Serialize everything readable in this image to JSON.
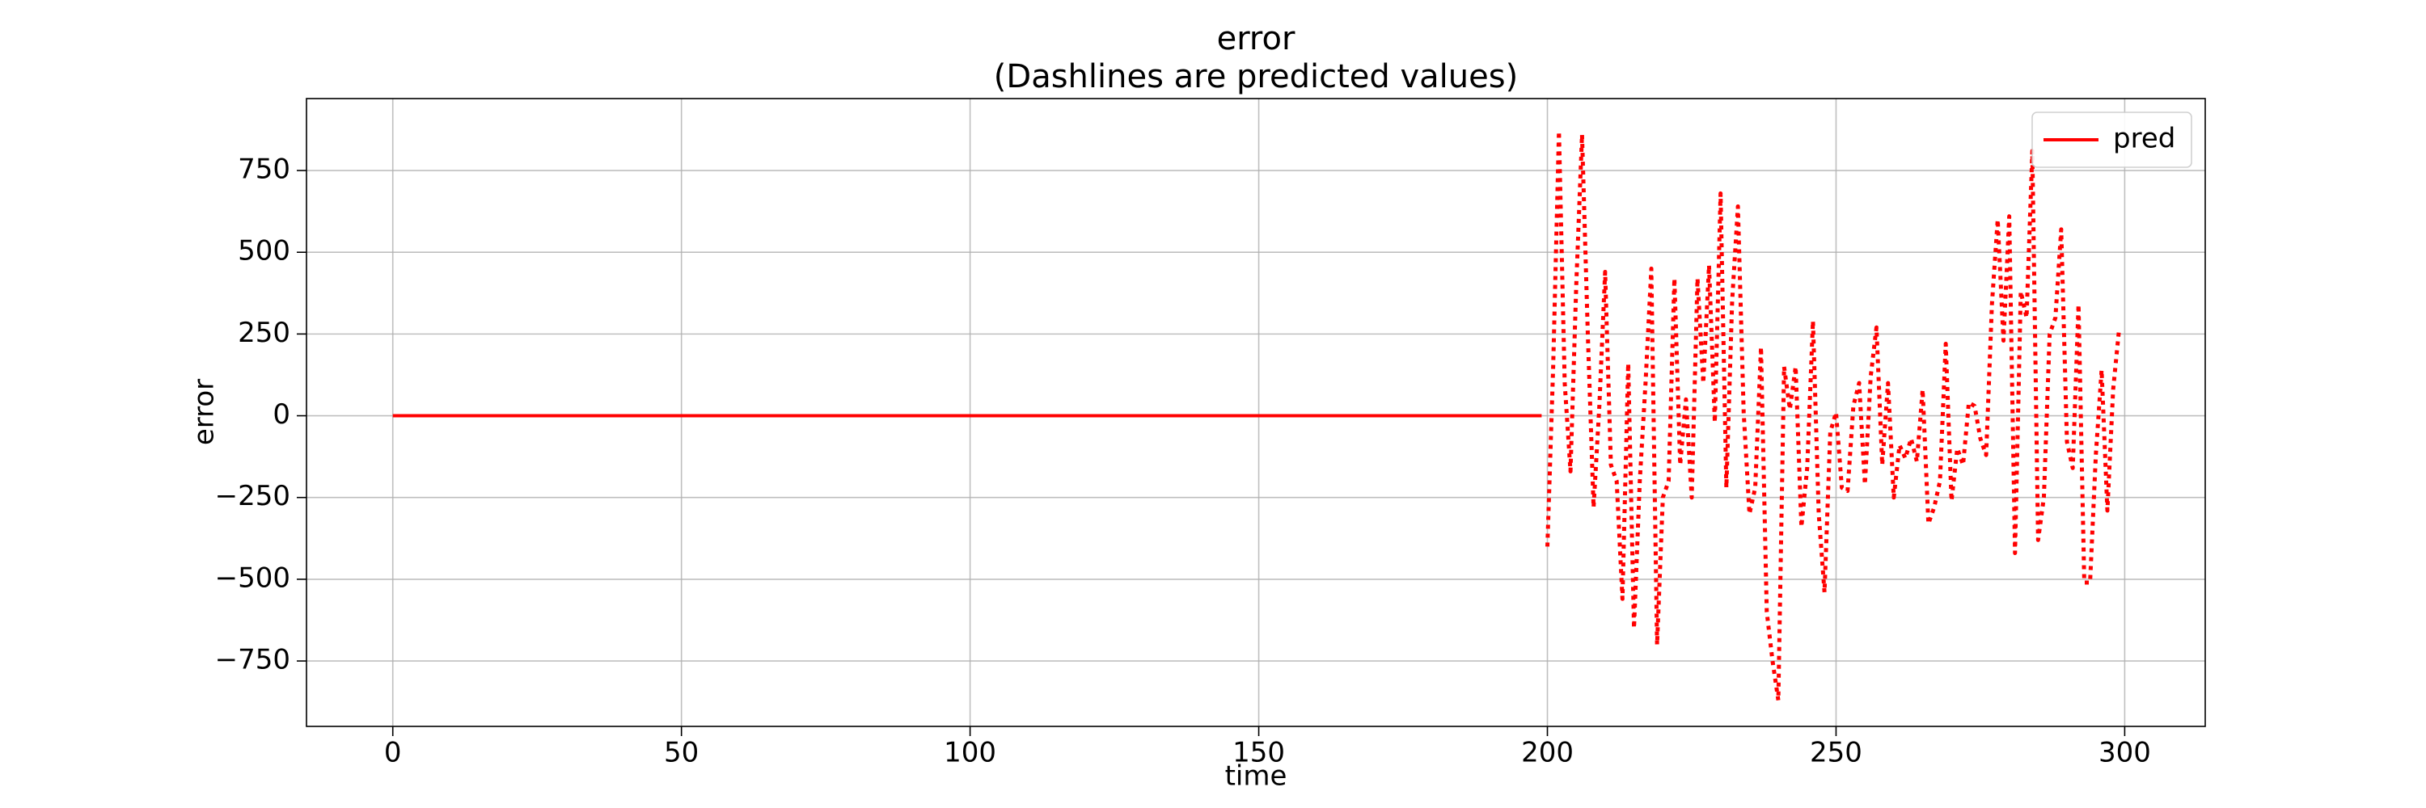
{
  "chart_data": {
    "type": "line",
    "title": "error",
    "subtitle": "(Dashlines are predicted values)",
    "xlabel": "time",
    "ylabel": "error",
    "xlim": [
      -14.95,
      313.95
    ],
    "ylim": [
      -950,
      970
    ],
    "xticks": [
      0,
      50,
      100,
      150,
      200,
      250,
      300
    ],
    "yticks": [
      {
        "value": -750,
        "label": "−750"
      },
      {
        "value": -500,
        "label": "−500"
      },
      {
        "value": -250,
        "label": "−250"
      },
      0,
      250,
      500,
      750
    ],
    "grid": true,
    "legend": "upper right",
    "series": [
      {
        "name": "pred",
        "color": "#ff0000",
        "style": "solid",
        "x": [
          0,
          1,
          2,
          3,
          4,
          5,
          6,
          7,
          8,
          9,
          10,
          11,
          12,
          13,
          14,
          15,
          16,
          17,
          18,
          19,
          20,
          21,
          22,
          23,
          24,
          25,
          26,
          27,
          28,
          29,
          30,
          31,
          32,
          33,
          34,
          35,
          36,
          37,
          38,
          39,
          40,
          41,
          42,
          43,
          44,
          45,
          46,
          47,
          48,
          49,
          50,
          51,
          52,
          53,
          54,
          55,
          56,
          57,
          58,
          59,
          60,
          61,
          62,
          63,
          64,
          65,
          66,
          67,
          68,
          69,
          70,
          71,
          72,
          73,
          74,
          75,
          76,
          77,
          78,
          79,
          80,
          81,
          82,
          83,
          84,
          85,
          86,
          87,
          88,
          89,
          90,
          91,
          92,
          93,
          94,
          95,
          96,
          97,
          98,
          99,
          100,
          101,
          102,
          103,
          104,
          105,
          106,
          107,
          108,
          109,
          110,
          111,
          112,
          113,
          114,
          115,
          116,
          117,
          118,
          119,
          120,
          121,
          122,
          123,
          124,
          125,
          126,
          127,
          128,
          129,
          130,
          131,
          132,
          133,
          134,
          135,
          136,
          137,
          138,
          139,
          140,
          141,
          142,
          143,
          144,
          145,
          146,
          147,
          148,
          149,
          150,
          151,
          152,
          153,
          154,
          155,
          156,
          157,
          158,
          159,
          160,
          161,
          162,
          163,
          164,
          165,
          166,
          167,
          168,
          169,
          170,
          171,
          172,
          173,
          174,
          175,
          176,
          177,
          178,
          179,
          180,
          181,
          182,
          183,
          184,
          185,
          186,
          187,
          188,
          189,
          190,
          191,
          192,
          193,
          194,
          195,
          196,
          197,
          198,
          199
        ],
        "values": [
          0,
          0,
          0,
          0,
          0,
          0,
          0,
          0,
          0,
          0,
          0,
          0,
          0,
          0,
          0,
          0,
          0,
          0,
          0,
          0,
          0,
          0,
          0,
          0,
          0,
          0,
          0,
          0,
          0,
          0,
          0,
          0,
          0,
          0,
          0,
          0,
          0,
          0,
          0,
          0,
          0,
          0,
          0,
          0,
          0,
          0,
          0,
          0,
          0,
          0,
          0,
          0,
          0,
          0,
          0,
          0,
          0,
          0,
          0,
          0,
          0,
          0,
          0,
          0,
          0,
          0,
          0,
          0,
          0,
          0,
          0,
          0,
          0,
          0,
          0,
          0,
          0,
          0,
          0,
          0,
          0,
          0,
          0,
          0,
          0,
          0,
          0,
          0,
          0,
          0,
          0,
          0,
          0,
          0,
          0,
          0,
          0,
          0,
          0,
          0,
          0,
          0,
          0,
          0,
          0,
          0,
          0,
          0,
          0,
          0,
          0,
          0,
          0,
          0,
          0,
          0,
          0,
          0,
          0,
          0,
          0,
          0,
          0,
          0,
          0,
          0,
          0,
          0,
          0,
          0,
          0,
          0,
          0,
          0,
          0,
          0,
          0,
          0,
          0,
          0,
          0,
          0,
          0,
          0,
          0,
          0,
          0,
          0,
          0,
          0,
          0,
          0,
          0,
          0,
          0,
          0,
          0,
          0,
          0,
          0,
          0,
          0,
          0,
          0,
          0,
          0,
          0,
          0,
          0,
          0,
          0,
          0,
          0,
          0,
          0,
          0,
          0,
          0,
          0,
          0,
          0,
          0,
          0,
          0,
          0,
          0,
          0,
          0,
          0,
          0,
          0,
          0,
          0,
          0,
          0,
          0,
          0,
          0,
          0,
          0
        ]
      },
      {
        "color": "#ff0000",
        "style": "dotted",
        "x": [
          200,
          201,
          202,
          203,
          204,
          205,
          206,
          207,
          208,
          209,
          210,
          211,
          212,
          213,
          214,
          215,
          216,
          217,
          218,
          219,
          220,
          221,
          222,
          223,
          224,
          225,
          226,
          227,
          228,
          229,
          230,
          231,
          232,
          233,
          234,
          235,
          236,
          237,
          238,
          239,
          240,
          241,
          242,
          243,
          244,
          245,
          246,
          247,
          248,
          249,
          250,
          251,
          252,
          253,
          254,
          255,
          256,
          257,
          258,
          259,
          260,
          261,
          262,
          263,
          264,
          265,
          266,
          267,
          268,
          269,
          270,
          271,
          272,
          273,
          274,
          275,
          276,
          277,
          278,
          279,
          280,
          281,
          282,
          283,
          284,
          285,
          286,
          287,
          288,
          289,
          290,
          291,
          292,
          293,
          294,
          295,
          296,
          297,
          298,
          299
        ],
        "values": [
          -400,
          150,
          870,
          100,
          -170,
          400,
          860,
          250,
          -280,
          30,
          440,
          -150,
          -200,
          -560,
          160,
          -650,
          -200,
          100,
          450,
          -700,
          -250,
          -200,
          420,
          -150,
          50,
          -250,
          420,
          100,
          460,
          -20,
          680,
          -220,
          350,
          640,
          10,
          -300,
          -220,
          210,
          -600,
          -750,
          -870,
          150,
          20,
          150,
          -340,
          -160,
          290,
          -300,
          -540,
          -50,
          10,
          -220,
          -230,
          30,
          100,
          -210,
          120,
          270,
          -150,
          100,
          -250,
          -90,
          -130,
          -70,
          -140,
          80,
          -330,
          -280,
          -200,
          220,
          -260,
          -100,
          -150,
          40,
          30,
          -70,
          -120,
          340,
          600,
          230,
          610,
          -420,
          380,
          300,
          810,
          -380,
          -250,
          250,
          300,
          570,
          -80,
          -160,
          340,
          -510,
          -510,
          -120,
          140,
          -290,
          80,
          260
        ]
      }
    ]
  }
}
